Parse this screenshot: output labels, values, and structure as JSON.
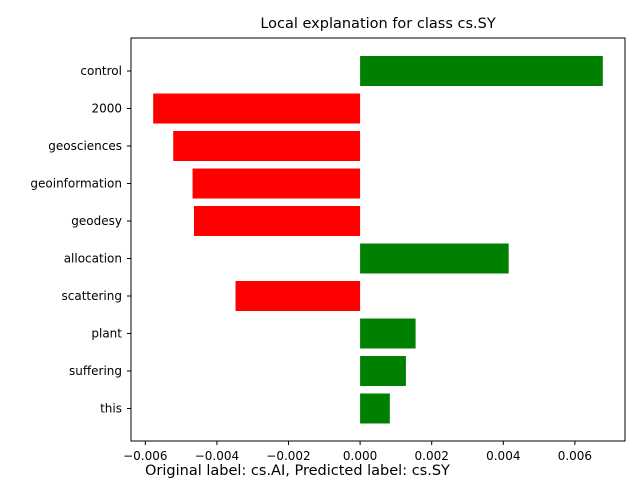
{
  "chart_data": {
    "type": "bar",
    "orientation": "horizontal",
    "title": "Local explanation for class cs.SY",
    "caption": "Original label: cs.AI, Predicted label: cs.SY",
    "categories": [
      "control",
      "2000",
      "geosciences",
      "geoinformation",
      "geodesy",
      "allocation",
      "scattering",
      "plant",
      "suffering",
      "this"
    ],
    "values": [
      0.00678,
      -0.00578,
      -0.00522,
      -0.00468,
      -0.00464,
      0.00415,
      -0.00348,
      0.00155,
      0.00128,
      0.00083
    ],
    "xlim": [
      -0.0064,
      0.0074
    ],
    "xticks": [
      -0.006,
      -0.004,
      -0.002,
      0.0,
      0.002,
      0.004,
      0.006
    ],
    "xtick_labels": [
      "−0.006",
      "−0.004",
      "−0.002",
      "0.000",
      "0.002",
      "0.004",
      "0.006"
    ],
    "positive_color": "#008000",
    "negative_color": "#ff0000",
    "grid": false,
    "xlabel": "",
    "ylabel": ""
  }
}
